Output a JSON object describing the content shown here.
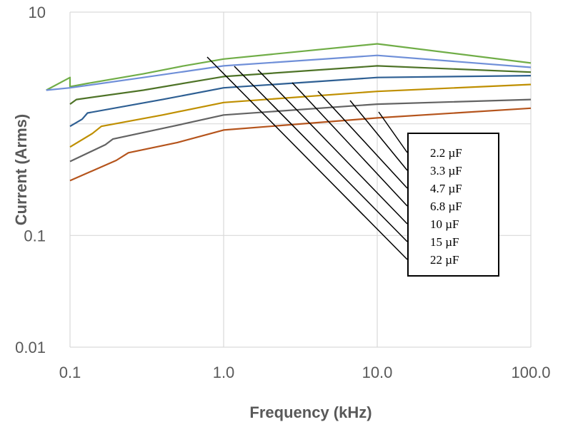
{
  "chart_data": {
    "type": "line",
    "title": "",
    "xlabel": "Frequency (kHz)",
    "ylabel": "Current (Arms)",
    "x_scale": "log",
    "y_scale": "log",
    "xlim": [
      0.1,
      100
    ],
    "ylim": [
      0.01,
      10
    ],
    "x_ticks": [
      "0.1",
      "1.0",
      "10.0",
      "100.0"
    ],
    "y_ticks": [
      "10",
      "0.1",
      "0.01"
    ],
    "grid": true,
    "legend_position": "right",
    "series": [
      {
        "name": "2.2  µF",
        "color": "#70ad47",
        "points": [
          [
            0.07,
            2.0
          ],
          [
            0.1,
            2.6
          ],
          [
            0.1,
            2.15
          ],
          [
            0.13,
            2.3
          ],
          [
            0.3,
            2.8
          ],
          [
            0.55,
            3.3
          ],
          [
            1.0,
            3.8
          ],
          [
            10.0,
            5.2
          ],
          [
            100.0,
            3.5
          ]
        ]
      },
      {
        "name": "3.3  µF",
        "color": "#6f8fd8",
        "points": [
          [
            0.07,
            2.0
          ],
          [
            0.1,
            2.1
          ],
          [
            0.3,
            2.6
          ],
          [
            1.0,
            3.3
          ],
          [
            10.0,
            4.1
          ],
          [
            100.0,
            3.2
          ]
        ]
      },
      {
        "name": "4.7  µF",
        "color": "#4e7327",
        "points": [
          [
            0.1,
            1.5
          ],
          [
            0.11,
            1.65
          ],
          [
            0.3,
            2.0
          ],
          [
            1.0,
            2.65
          ],
          [
            10.0,
            3.3
          ],
          [
            100.0,
            2.9
          ]
        ]
      },
      {
        "name": "6.8  µF",
        "color": "#2e5f93",
        "points": [
          [
            0.1,
            0.95
          ],
          [
            0.12,
            1.1
          ],
          [
            0.13,
            1.25
          ],
          [
            0.4,
            1.65
          ],
          [
            1.0,
            2.1
          ],
          [
            10.0,
            2.6
          ],
          [
            100.0,
            2.7
          ]
        ]
      },
      {
        "name": "10   µF",
        "color": "#bf8f00",
        "points": [
          [
            0.1,
            0.62
          ],
          [
            0.14,
            0.82
          ],
          [
            0.16,
            0.95
          ],
          [
            0.4,
            1.2
          ],
          [
            1.0,
            1.55
          ],
          [
            10.0,
            1.95
          ],
          [
            100.0,
            2.25
          ]
        ]
      },
      {
        "name": "15   µF",
        "color": "#636363",
        "points": [
          [
            0.1,
            0.46
          ],
          [
            0.17,
            0.65
          ],
          [
            0.19,
            0.73
          ],
          [
            0.5,
            0.97
          ],
          [
            1.0,
            1.2
          ],
          [
            10.0,
            1.5
          ],
          [
            100.0,
            1.65
          ]
        ]
      },
      {
        "name": "22  µF",
        "color": "#b5541c",
        "points": [
          [
            0.1,
            0.31
          ],
          [
            0.2,
            0.47
          ],
          [
            0.24,
            0.55
          ],
          [
            0.5,
            0.68
          ],
          [
            1.0,
            0.88
          ],
          [
            10.0,
            1.13
          ],
          [
            100.0,
            1.38
          ]
        ]
      }
    ]
  }
}
